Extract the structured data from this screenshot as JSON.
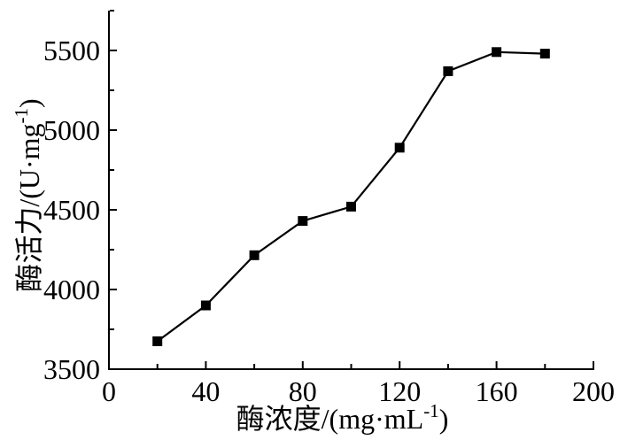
{
  "chart_data": {
    "type": "line",
    "title": "",
    "xlabel": "酶浓度/(mg·mL⁻¹)",
    "ylabel": "酶活力/(U·mg⁻¹)",
    "xlabel_parts": {
      "main": "酶浓度/(mg·mL",
      "sup": "-1",
      "tail": ")"
    },
    "ylabel_parts": {
      "main": "酶活力/(U·mg",
      "sup": "-1",
      "tail": ")"
    },
    "x": [
      20,
      40,
      60,
      80,
      100,
      120,
      140,
      160,
      180
    ],
    "y": [
      3675,
      3900,
      4215,
      4430,
      4520,
      4890,
      5370,
      5490,
      5480
    ],
    "series_name": "酶活力",
    "xlim": [
      0,
      200
    ],
    "ylim": [
      3500,
      5750
    ],
    "x_major_ticks": [
      0,
      40,
      80,
      120,
      160,
      200
    ],
    "x_minor_ticks": [
      20,
      60,
      100,
      140,
      180
    ],
    "y_major_ticks": [
      3500,
      4000,
      4500,
      5000,
      5500
    ],
    "y_minor_ticks": [
      3750,
      4250,
      4750,
      5250,
      5750
    ],
    "marker": "square",
    "grid": false,
    "legend": null,
    "line_color": "#000000",
    "marker_color": "#000000",
    "axis_color": "#000000",
    "background_color": "#ffffff"
  }
}
